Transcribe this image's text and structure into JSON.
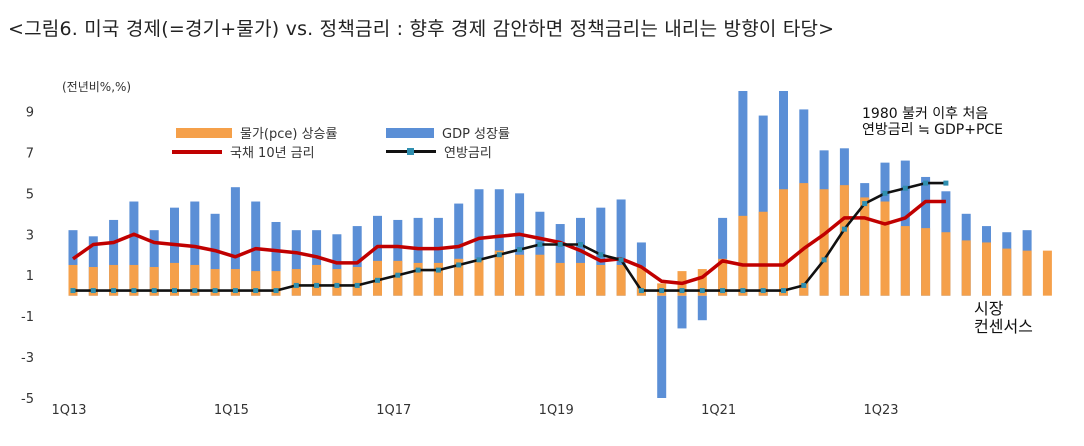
{
  "title": "<그림6. 미국 경제(=경기+물가) vs. 정책금리 : 향후 경제 감안하면 정책금리는 내리는 방향이 타당>",
  "chart_data": {
    "type": "bar",
    "unit_label": "(전년비%,%)",
    "ylim": [
      -5,
      10
    ],
    "yticks": [
      "9",
      "7",
      "5",
      "3",
      "1",
      "-1",
      "-3",
      "-5"
    ],
    "x": [
      "1Q13",
      "2Q13",
      "3Q13",
      "4Q13",
      "1Q14",
      "2Q14",
      "3Q14",
      "4Q14",
      "1Q15",
      "2Q15",
      "3Q15",
      "4Q15",
      "1Q16",
      "2Q16",
      "3Q16",
      "4Q16",
      "1Q17",
      "2Q17",
      "3Q17",
      "4Q17",
      "1Q18",
      "2Q18",
      "3Q18",
      "4Q18",
      "1Q19",
      "2Q19",
      "3Q19",
      "4Q19",
      "1Q20",
      "2Q20",
      "3Q20",
      "4Q20",
      "1Q21",
      "2Q21",
      "3Q21",
      "4Q21",
      "1Q22",
      "2Q22",
      "3Q22",
      "4Q22",
      "1Q23",
      "2Q23",
      "3Q23",
      "4Q23",
      "1Q24",
      "2Q24",
      "3Q24",
      "4Q24",
      "1Q25"
    ],
    "xtick_labels": [
      {
        "i": 0,
        "label": "1Q13"
      },
      {
        "i": 8,
        "label": "1Q15"
      },
      {
        "i": 16,
        "label": "1Q17"
      },
      {
        "i": 24,
        "label": "1Q19"
      },
      {
        "i": 32,
        "label": "1Q21"
      },
      {
        "i": 40,
        "label": "1Q23"
      }
    ],
    "series": [
      {
        "name": "물가(pce) 상승률",
        "type": "bar",
        "color": "#F5A04A",
        "values": [
          1.5,
          1.4,
          1.5,
          1.5,
          1.4,
          1.6,
          1.5,
          1.3,
          1.3,
          1.2,
          1.2,
          1.3,
          1.5,
          1.3,
          1.4,
          1.7,
          1.7,
          1.6,
          1.6,
          1.8,
          1.8,
          2.2,
          2.0,
          2.0,
          1.6,
          1.6,
          1.5,
          1.5,
          1.4,
          0.6,
          1.2,
          1.3,
          1.8,
          3.9,
          4.1,
          5.2,
          5.5,
          5.2,
          5.4,
          4.8,
          4.6,
          3.4,
          3.3,
          3.1,
          2.7,
          2.6,
          2.3,
          2.2,
          2.2
        ]
      },
      {
        "name": "GDP 성장률",
        "type": "bar",
        "color": "#5B8FD6",
        "values": [
          3.2,
          2.9,
          3.7,
          4.6,
          3.2,
          4.3,
          4.6,
          4.0,
          5.3,
          4.6,
          3.6,
          3.2,
          3.2,
          3.0,
          3.4,
          3.9,
          3.7,
          3.8,
          3.8,
          4.5,
          5.2,
          5.2,
          5.0,
          4.1,
          3.5,
          3.8,
          4.3,
          4.7,
          2.6,
          -5.0,
          -1.6,
          -1.2,
          3.8,
          10.0,
          8.8,
          10.0,
          9.1,
          7.1,
          7.2,
          5.5,
          6.5,
          6.6,
          5.8,
          5.1,
          4.0,
          3.4,
          3.1,
          3.2,
          null
        ]
      },
      {
        "name": "국채 10년 금리",
        "type": "line",
        "color": "#C00000",
        "values": [
          1.8,
          2.5,
          2.6,
          3.0,
          2.6,
          2.5,
          2.4,
          2.2,
          1.9,
          2.3,
          2.2,
          2.1,
          1.9,
          1.6,
          1.6,
          2.4,
          2.4,
          2.3,
          2.3,
          2.4,
          2.8,
          2.9,
          3.0,
          2.8,
          2.6,
          2.2,
          1.7,
          1.8,
          1.4,
          0.7,
          0.6,
          0.9,
          1.7,
          1.5,
          1.5,
          1.5,
          2.3,
          3.0,
          3.8,
          3.8,
          3.5,
          3.8,
          4.6,
          4.6,
          null,
          null,
          null,
          null,
          null
        ]
      },
      {
        "name": "연방금리",
        "type": "line",
        "color": "#111111",
        "marker_color": "#2F8FB0",
        "values": [
          0.25,
          0.25,
          0.25,
          0.25,
          0.25,
          0.25,
          0.25,
          0.25,
          0.25,
          0.25,
          0.25,
          0.5,
          0.5,
          0.5,
          0.5,
          0.75,
          1.0,
          1.25,
          1.25,
          1.5,
          1.75,
          2.0,
          2.25,
          2.5,
          2.5,
          2.5,
          2.0,
          1.75,
          0.25,
          0.25,
          0.25,
          0.25,
          0.25,
          0.25,
          0.25,
          0.25,
          0.5,
          1.75,
          3.25,
          4.5,
          5.0,
          5.25,
          5.5,
          5.5,
          null,
          null,
          null,
          null,
          null
        ]
      }
    ],
    "annotations": [
      {
        "key": "a1",
        "text": "1980 불커 이후 처음\n연방금리 ≒ GDP+PCE"
      },
      {
        "key": "a2",
        "text": "시장\n컨센서스"
      }
    ],
    "forecast_start_index": 43,
    "grid": false,
    "legend_position": "top-left"
  }
}
